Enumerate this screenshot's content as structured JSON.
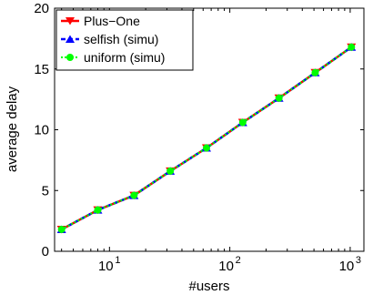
{
  "chart_data": {
    "type": "line",
    "xlabel": "#users",
    "ylabel": "average delay",
    "xscale": "log",
    "xlim": [
      3.5,
      1300
    ],
    "ylim": [
      0,
      20
    ],
    "x_ticks": [
      {
        "base": "10",
        "exp": "1",
        "value": 10
      },
      {
        "base": "10",
        "exp": "2",
        "value": 100
      },
      {
        "base": "10",
        "exp": "3",
        "value": 1000
      }
    ],
    "y_ticks": [
      {
        "label": "0",
        "value": 0
      },
      {
        "label": "5",
        "value": 5
      },
      {
        "label": "10",
        "value": 10
      },
      {
        "label": "15",
        "value": 15
      },
      {
        "label": "20",
        "value": 20
      }
    ],
    "grid": false,
    "legend_position": "top-left",
    "x": [
      4,
      8,
      16,
      32,
      64,
      128,
      256,
      512,
      1024
    ],
    "series": [
      {
        "name": "Plus−One",
        "values": [
          1.8,
          3.4,
          4.6,
          6.6,
          8.5,
          10.6,
          12.6,
          14.7,
          16.8
        ],
        "color": "#ff0000",
        "dash": "solid",
        "marker": "triangle-down"
      },
      {
        "name": "selfish (simu)",
        "values": [
          1.8,
          3.4,
          4.6,
          6.6,
          8.5,
          10.6,
          12.6,
          14.7,
          16.8
        ],
        "color": "#0000ff",
        "dash": "dashed",
        "marker": "triangle-up"
      },
      {
        "name": "uniform (simu)",
        "values": [
          1.8,
          3.4,
          4.6,
          6.6,
          8.5,
          10.6,
          12.6,
          14.7,
          16.8
        ],
        "color": "#00ff00",
        "dash": "dotted",
        "marker": "circle"
      }
    ]
  }
}
